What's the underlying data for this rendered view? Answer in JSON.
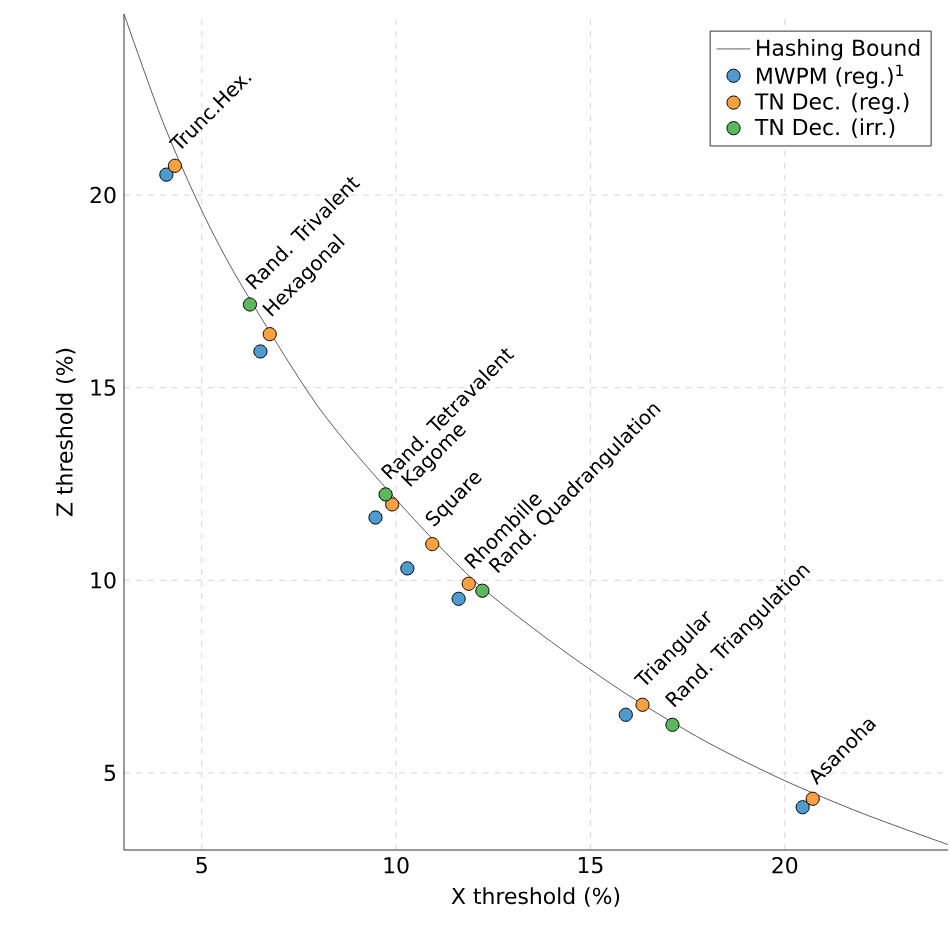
{
  "chart_data": {
    "type": "scatter",
    "xlabel": "X threshold (%)",
    "ylabel": "Z threshold (%)",
    "xlim": [
      3,
      24.2
    ],
    "ylim": [
      3,
      24.7
    ],
    "xticks": [
      5,
      10,
      15,
      20
    ],
    "yticks": [
      5,
      10,
      15,
      20
    ],
    "grid": true,
    "legend": "top right",
    "series": [
      {
        "name": "Hashing Bound",
        "type": "line",
        "color": "#333333",
        "x": [
          3,
          4,
          5,
          6,
          8,
          10,
          12,
          14,
          16,
          18,
          20,
          22,
          24.2
        ],
        "values": [
          24.7,
          21.9,
          19.6,
          17.7,
          14.5,
          12.1,
          10.0,
          8.4,
          7.0,
          5.8,
          4.8,
          3.95,
          3.14
        ]
      },
      {
        "name": "MWPM (reg.)$^{1}$",
        "marker": "circle",
        "color": "#4e9bd0",
        "x": [
          4.09,
          6.51,
          9.47,
          10.29,
          11.61,
          15.91,
          20.46
        ],
        "values": [
          20.53,
          15.94,
          11.63,
          10.31,
          9.52,
          6.51,
          4.11
        ]
      },
      {
        "name": "TN Dec. (reg.)",
        "marker": "circle",
        "color": "#f9a040",
        "x": [
          4.31,
          6.75,
          9.9,
          10.93,
          11.87,
          16.34,
          20.72
        ],
        "values": [
          20.76,
          16.39,
          11.97,
          10.94,
          9.91,
          6.77,
          4.33
        ]
      },
      {
        "name": "TN Dec. (irr.)",
        "marker": "circle",
        "color": "#5cb85c",
        "x": [
          6.24,
          9.73,
          12.22,
          17.11
        ],
        "values": [
          17.16,
          12.23,
          9.73,
          6.25
        ]
      }
    ],
    "annotations": [
      {
        "text": "Trunc.Hex.",
        "x": 4.31,
        "y": 20.76
      },
      {
        "text": "Rand. Trivalent",
        "x": 6.24,
        "y": 17.16
      },
      {
        "text": "Hexagonal",
        "x": 6.75,
        "y": 16.39
      },
      {
        "text": "Rand. Tetravalent",
        "x": 9.73,
        "y": 12.23
      },
      {
        "text": "Kagome",
        "x": 9.9,
        "y": 11.97
      },
      {
        "text": "Square",
        "x": 10.93,
        "y": 10.94
      },
      {
        "text": "Rhombille",
        "x": 11.87,
        "y": 9.91
      },
      {
        "text": "Rand. Quadrangulation",
        "x": 12.22,
        "y": 9.73
      },
      {
        "text": "Triangular",
        "x": 16.34,
        "y": 6.77
      },
      {
        "text": "Rand. Triangulation",
        "x": 17.11,
        "y": 6.25
      },
      {
        "text": "Asanoha",
        "x": 20.72,
        "y": 4.33
      }
    ]
  }
}
